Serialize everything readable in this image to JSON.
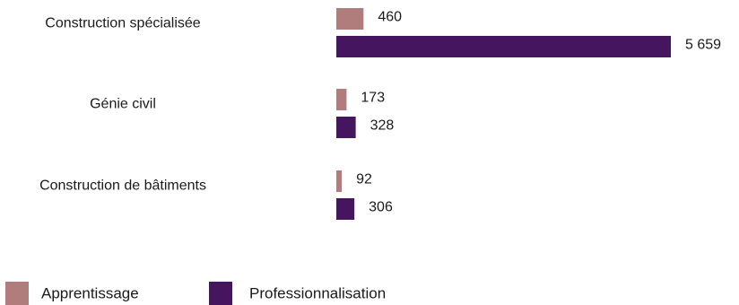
{
  "chart_data": {
    "type": "bar",
    "orientation": "horizontal",
    "categories": [
      "Construction spécialisée",
      "Génie civil",
      "Construction de bâtiments"
    ],
    "series": [
      {
        "name": "Apprentissage",
        "color": "#b07c7c",
        "values": [
          460,
          173,
          92
        ],
        "labels": [
          "460",
          "173",
          "92"
        ]
      },
      {
        "name": "Professionnalisation",
        "color": "#45155f",
        "values": [
          5659,
          328,
          306
        ],
        "labels": [
          "5 659",
          "328",
          "306"
        ]
      }
    ],
    "xlim": [
      0,
      5659
    ],
    "grid": false,
    "legend_position": "bottom-left"
  }
}
